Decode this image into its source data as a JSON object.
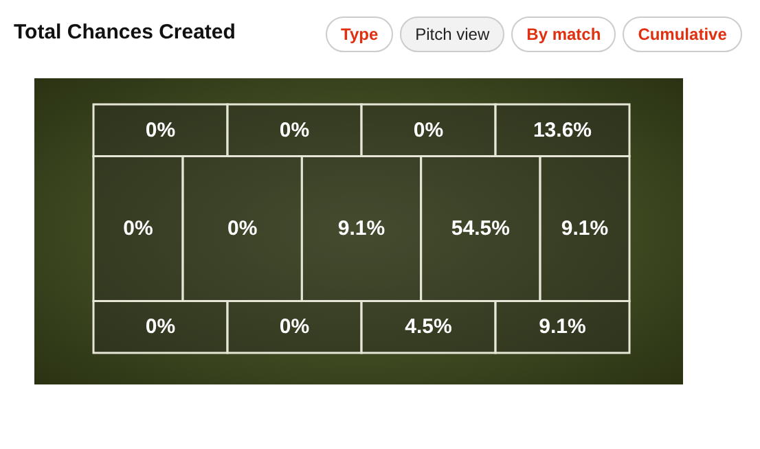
{
  "chart_data": {
    "type": "other",
    "title": "Total Chances Created",
    "annotations": [
      "Type",
      "Pitch view",
      "By match",
      "Cumulative"
    ],
    "categories": [
      null,
      null,
      null,
      null,
      null,
      null,
      null,
      null,
      null,
      null,
      null,
      null,
      null
    ],
    "values": [
      0,
      0,
      0,
      13.6,
      0,
      0,
      9.1,
      54.5,
      9.1,
      0,
      0,
      4.5,
      9.1
    ],
    "value_labels": [
      "0%",
      "0%",
      "0%",
      "13.6%",
      "0%",
      "0%",
      "9.1%",
      "54.5%",
      "9.1%",
      "0%",
      "0%",
      "4.5%",
      "9.1%"
    ]
  }
}
